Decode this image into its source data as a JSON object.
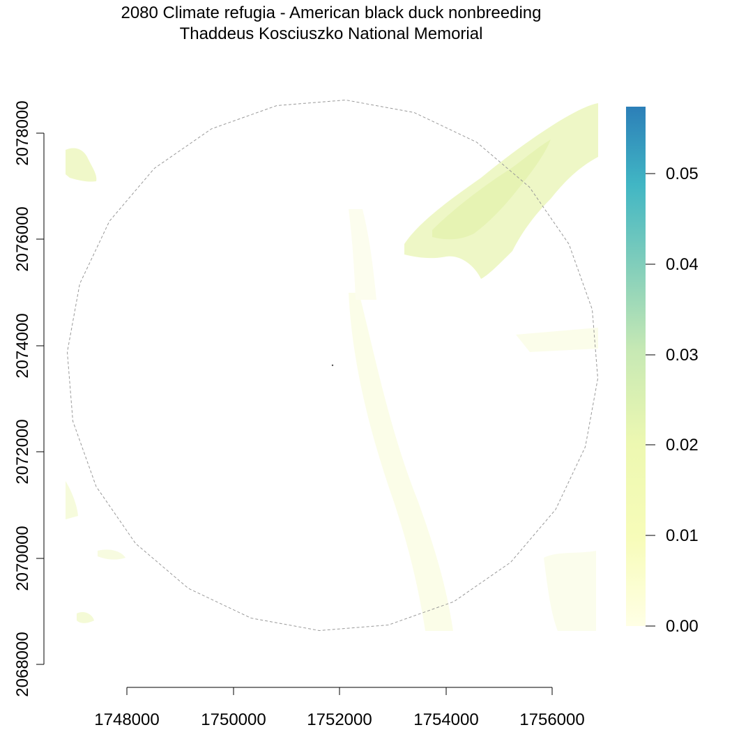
{
  "title": {
    "line1": "2080 Climate refugia - American black duck nonbreeding",
    "line2": "Thaddeus Kosciuszko National Memorial"
  },
  "map": {
    "x_ticks": [
      "1748000",
      "1750000",
      "1752000",
      "1754000",
      "1756000"
    ],
    "y_ticks": [
      "2068000",
      "2070000",
      "2072000",
      "2074000",
      "2076000",
      "2078000"
    ],
    "x_range": [
      1746600,
      1756800
    ],
    "y_range": [
      2068500,
      2078600
    ],
    "boundary_style": "dashed gray polygon (approx. circular buffer)",
    "center_marker": {
      "x": 1751850,
      "y": 2073650
    }
  },
  "legend": {
    "ticks": [
      "0.00",
      "0.01",
      "0.02",
      "0.03",
      "0.04",
      "0.05"
    ],
    "min": 0.0,
    "max": 0.057,
    "colors": [
      "#ffffe5",
      "#f7fcb9",
      "#edf8b1",
      "#c7e9b4",
      "#7fcdbb",
      "#41b6c4",
      "#2c7fb8"
    ]
  },
  "colors": {
    "boundary": "#999999",
    "axis": "#000000",
    "raster_low": "#fbfde9",
    "raster_mid": "#eef7c6"
  }
}
